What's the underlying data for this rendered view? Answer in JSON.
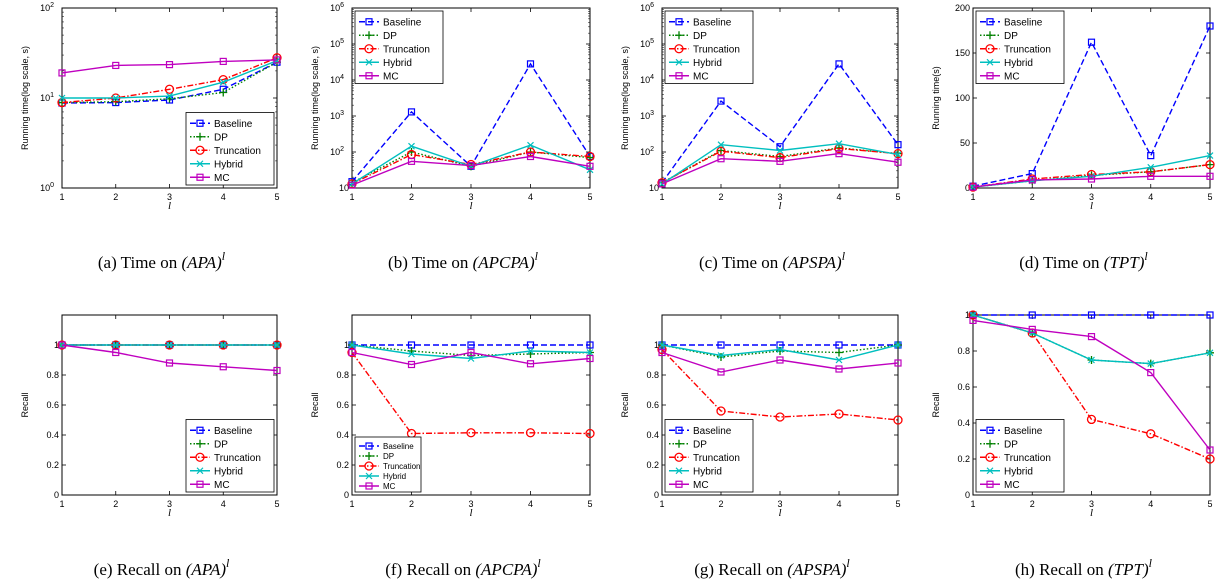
{
  "colors": {
    "Baseline": "#0000ff",
    "DP": "#008000",
    "Truncation": "#ff0000",
    "Hybrid": "#00bfbf",
    "MC": "#bf00bf"
  },
  "chart_data": [
    {
      "id": "a",
      "type": "line",
      "yscale": "log",
      "ylim": [
        1,
        100
      ],
      "caption_prefix": "(a) Time on",
      "caption_math": "(APA)",
      "caption_sup": "l",
      "xlabel": "l",
      "ylabel": "Running time(log scale, s)",
      "x": [
        1,
        2,
        3,
        4,
        5
      ],
      "xticks": [
        "1",
        "2",
        "3",
        "4",
        "5"
      ],
      "yticks": [
        {
          "v": 1,
          "b": "10",
          "e": "0"
        },
        {
          "v": 10,
          "b": "10",
          "e": "1"
        },
        {
          "v": 100,
          "b": "10",
          "e": "2"
        }
      ],
      "legend_position": "bottom-right",
      "series": [
        {
          "name": "Baseline",
          "values": [
            8.8,
            8.9,
            9.5,
            12.5,
            25
          ]
        },
        {
          "name": "DP",
          "values": [
            8.9,
            9.1,
            9.8,
            11.5,
            25
          ]
        },
        {
          "name": "Truncation",
          "values": [
            8.9,
            10,
            12.5,
            16,
            28
          ]
        },
        {
          "name": "Hybrid",
          "values": [
            10,
            10,
            10.5,
            15,
            26
          ]
        },
        {
          "name": "MC",
          "values": [
            19,
            23,
            23.5,
            25.5,
            26.5
          ]
        }
      ]
    },
    {
      "id": "b",
      "type": "line",
      "yscale": "log",
      "ylim": [
        10,
        1000000
      ],
      "caption_prefix": "(b) Time on",
      "caption_math": "(APCPA)",
      "caption_sup": "l",
      "xlabel": "l",
      "ylabel": "Running time(log scale, s)",
      "x": [
        1,
        2,
        3,
        4,
        5
      ],
      "xticks": [
        "1",
        "2",
        "3",
        "4",
        "5"
      ],
      "yticks": [
        {
          "v": 10,
          "b": "10",
          "e": ""
        },
        {
          "v": 100,
          "b": "10",
          "e": "2"
        },
        {
          "v": 1000,
          "b": "10",
          "e": "3"
        },
        {
          "v": 10000,
          "b": "10",
          "e": "4"
        },
        {
          "v": 100000,
          "b": "10",
          "e": "5"
        },
        {
          "v": 1000000,
          "b": "10",
          "e": "6"
        }
      ],
      "legend_position": "top-left",
      "series": [
        {
          "name": "Baseline",
          "values": [
            15,
            1300,
            40,
            28000,
            75
          ]
        },
        {
          "name": "DP",
          "values": [
            14,
            100,
            40,
            100,
            70
          ]
        },
        {
          "name": "Truncation",
          "values": [
            13,
            85,
            45,
            100,
            75
          ]
        },
        {
          "name": "Hybrid",
          "values": [
            13,
            145,
            40,
            155,
            32
          ]
        },
        {
          "name": "MC",
          "values": [
            12,
            55,
            42,
            75,
            40
          ]
        }
      ]
    },
    {
      "id": "c",
      "type": "line",
      "yscale": "log",
      "ylim": [
        10,
        1000000
      ],
      "caption_prefix": "(c) Time on",
      "caption_math": "(APSPA)",
      "caption_sup": "l",
      "xlabel": "l",
      "ylabel": "Running time(log scale, s)",
      "x": [
        1,
        2,
        3,
        4,
        5
      ],
      "xticks": [
        "1",
        "2",
        "3",
        "4",
        "5"
      ],
      "yticks": [
        {
          "v": 10,
          "b": "10",
          "e": ""
        },
        {
          "v": 100,
          "b": "10",
          "e": "2"
        },
        {
          "v": 1000,
          "b": "10",
          "e": "3"
        },
        {
          "v": 10000,
          "b": "10",
          "e": "4"
        },
        {
          "v": 100000,
          "b": "10",
          "e": "5"
        },
        {
          "v": 1000000,
          "b": "10",
          "e": "6"
        }
      ],
      "legend_position": "top-left",
      "series": [
        {
          "name": "Baseline",
          "values": [
            14,
            2600,
            140,
            28000,
            160
          ]
        },
        {
          "name": "DP",
          "values": [
            14,
            110,
            75,
            130,
            90
          ]
        },
        {
          "name": "Truncation",
          "values": [
            14,
            105,
            70,
            125,
            90
          ]
        },
        {
          "name": "Hybrid",
          "values": [
            13,
            160,
            110,
            170,
            85
          ]
        },
        {
          "name": "MC",
          "values": [
            13,
            65,
            55,
            90,
            52
          ]
        }
      ]
    },
    {
      "id": "d",
      "type": "line",
      "yscale": "linear",
      "ylim": [
        0,
        200
      ],
      "caption_prefix": "(d) Time on",
      "caption_math": "(TPT)",
      "caption_sup": "l",
      "xlabel": "l",
      "ylabel": "Running time(s)",
      "x": [
        1,
        2,
        3,
        4,
        5
      ],
      "xticks": [
        "1",
        "2",
        "3",
        "4",
        "5"
      ],
      "yticks": [
        {
          "v": 0,
          "t": "0"
        },
        {
          "v": 50,
          "t": "50"
        },
        {
          "v": 100,
          "t": "100"
        },
        {
          "v": 150,
          "t": "150"
        },
        {
          "v": 200,
          "t": "200"
        }
      ],
      "legend_position": "top-left",
      "series": [
        {
          "name": "Baseline",
          "values": [
            2,
            16,
            162,
            36,
            180
          ]
        },
        {
          "name": "DP",
          "values": [
            1,
            8,
            14,
            18,
            26
          ]
        },
        {
          "name": "Truncation",
          "values": [
            1,
            10,
            15,
            18,
            26
          ]
        },
        {
          "name": "Hybrid",
          "values": [
            1,
            8,
            13,
            23,
            36
          ]
        },
        {
          "name": "MC",
          "values": [
            1,
            9,
            10,
            13,
            13
          ]
        }
      ]
    },
    {
      "id": "e",
      "type": "line",
      "yscale": "linear",
      "ylim": [
        0,
        1.2
      ],
      "caption_prefix": "(e) Recall on",
      "caption_math": "(APA)",
      "caption_sup": "l",
      "xlabel": "l",
      "ylabel": "Recall",
      "x": [
        1,
        2,
        3,
        4,
        5
      ],
      "xticks": [
        "1",
        "2",
        "3",
        "4",
        "5"
      ],
      "yticks": [
        {
          "v": 0,
          "t": "0"
        },
        {
          "v": 0.2,
          "t": "0.2"
        },
        {
          "v": 0.4,
          "t": "0.4"
        },
        {
          "v": 0.6,
          "t": "0.6"
        },
        {
          "v": 0.8,
          "t": "0.8"
        },
        {
          "v": 1,
          "t": "1"
        }
      ],
      "legend_position": "bottom-right",
      "series": [
        {
          "name": "Baseline",
          "values": [
            1,
            1,
            1,
            1,
            1
          ]
        },
        {
          "name": "DP",
          "values": [
            1,
            1,
            1,
            1,
            1
          ]
        },
        {
          "name": "Truncation",
          "values": [
            1,
            1,
            1,
            1,
            1
          ]
        },
        {
          "name": "Hybrid",
          "values": [
            1,
            1,
            1,
            1,
            1
          ]
        },
        {
          "name": "MC",
          "values": [
            1,
            0.95,
            0.88,
            0.855,
            0.83
          ]
        }
      ]
    },
    {
      "id": "f",
      "type": "line",
      "yscale": "linear",
      "ylim": [
        0,
        1.2
      ],
      "caption_prefix": "(f) Recall on",
      "caption_math": "(APCPA)",
      "caption_sup": "l",
      "xlabel": "l",
      "ylabel": "Recall",
      "x": [
        1,
        2,
        3,
        4,
        5
      ],
      "xticks": [
        "1",
        "2",
        "3",
        "4",
        "5"
      ],
      "yticks": [
        {
          "v": 0,
          "t": "0"
        },
        {
          "v": 0.2,
          "t": "0.2"
        },
        {
          "v": 0.4,
          "t": "0.4"
        },
        {
          "v": 0.6,
          "t": "0.6"
        },
        {
          "v": 0.8,
          "t": "0.8"
        },
        {
          "v": 1,
          "t": "1"
        }
      ],
      "legend_position": "bottom-left",
      "legend_small": true,
      "series": [
        {
          "name": "Baseline",
          "values": [
            1,
            1,
            1,
            1,
            1
          ]
        },
        {
          "name": "DP",
          "values": [
            1,
            0.96,
            0.93,
            0.94,
            0.95
          ]
        },
        {
          "name": "Truncation",
          "values": [
            0.95,
            0.41,
            0.415,
            0.415,
            0.41
          ]
        },
        {
          "name": "Hybrid",
          "values": [
            1,
            0.94,
            0.91,
            0.96,
            0.95
          ]
        },
        {
          "name": "MC",
          "values": [
            0.95,
            0.87,
            0.95,
            0.875,
            0.91
          ]
        }
      ]
    },
    {
      "id": "g",
      "type": "line",
      "yscale": "linear",
      "ylim": [
        0,
        1.2
      ],
      "caption_prefix": "(g) Recall on",
      "caption_math": "(APSPA)",
      "caption_sup": "l",
      "xlabel": "l",
      "ylabel": "Recall",
      "x": [
        1,
        2,
        3,
        4,
        5
      ],
      "xticks": [
        "1",
        "2",
        "3",
        "4",
        "5"
      ],
      "yticks": [
        {
          "v": 0,
          "t": "0"
        },
        {
          "v": 0.2,
          "t": "0.2"
        },
        {
          "v": 0.4,
          "t": "0.4"
        },
        {
          "v": 0.6,
          "t": "0.6"
        },
        {
          "v": 0.8,
          "t": "0.8"
        },
        {
          "v": 1,
          "t": "1"
        }
      ],
      "legend_position": "bottom-left",
      "series": [
        {
          "name": "Baseline",
          "values": [
            1,
            1,
            1,
            1,
            1
          ]
        },
        {
          "name": "DP",
          "values": [
            1,
            0.92,
            0.96,
            0.95,
            1
          ]
        },
        {
          "name": "Truncation",
          "values": [
            0.97,
            0.56,
            0.52,
            0.54,
            0.5
          ]
        },
        {
          "name": "Hybrid",
          "values": [
            1,
            0.93,
            0.97,
            0.9,
            1
          ]
        },
        {
          "name": "MC",
          "values": [
            0.95,
            0.82,
            0.9,
            0.84,
            0.88
          ]
        }
      ]
    },
    {
      "id": "h",
      "type": "line",
      "yscale": "linear",
      "ylim": [
        0,
        1
      ],
      "caption_prefix": "(h) Recall on",
      "caption_math": "(TPT)",
      "caption_sup": "l",
      "xlabel": "l",
      "ylabel": "Recall",
      "x": [
        1,
        2,
        3,
        4,
        5
      ],
      "xticks": [
        "1",
        "2",
        "3",
        "4",
        "5"
      ],
      "yticks": [
        {
          "v": 0,
          "t": "0"
        },
        {
          "v": 0.2,
          "t": "0.2"
        },
        {
          "v": 0.4,
          "t": "0.4"
        },
        {
          "v": 0.6,
          "t": "0.6"
        },
        {
          "v": 0.8,
          "t": "0.8"
        },
        {
          "v": 1,
          "t": "1"
        }
      ],
      "legend_position": "bottom-left",
      "series": [
        {
          "name": "Baseline",
          "values": [
            1,
            1,
            1,
            1,
            1
          ]
        },
        {
          "name": "DP",
          "values": [
            1,
            0.9,
            0.75,
            0.73,
            0.79
          ]
        },
        {
          "name": "Truncation",
          "values": [
            1,
            0.9,
            0.42,
            0.34,
            0.2
          ]
        },
        {
          "name": "Hybrid",
          "values": [
            1,
            0.9,
            0.75,
            0.73,
            0.79
          ]
        },
        {
          "name": "MC",
          "values": [
            0.97,
            0.92,
            0.88,
            0.68,
            0.25
          ]
        }
      ]
    }
  ]
}
